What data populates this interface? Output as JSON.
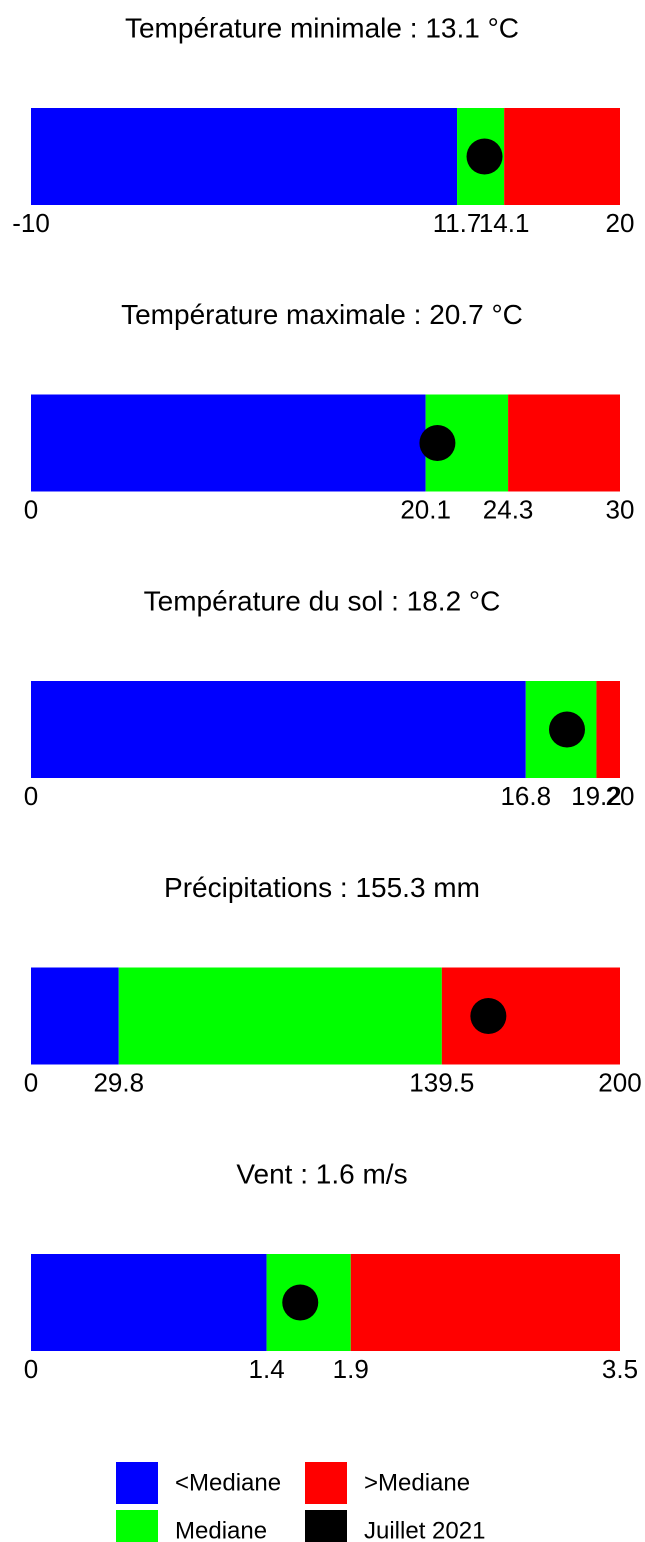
{
  "chart_data": [
    {
      "type": "bar",
      "title": "Température minimale : 13.1 °C",
      "xlim": [
        -10,
        20
      ],
      "xticks": [
        -10,
        11.7,
        14.1,
        20
      ],
      "lower": 11.7,
      "upper": 14.1,
      "value": 13.1
    },
    {
      "type": "bar",
      "title": "Température maximale : 20.7 °C",
      "xlim": [
        0,
        30
      ],
      "xticks": [
        0,
        20.1,
        24.3,
        30
      ],
      "lower": 20.1,
      "upper": 24.3,
      "value": 20.7
    },
    {
      "type": "bar",
      "title": "Température du sol : 18.2 °C",
      "xlim": [
        0,
        20
      ],
      "xticks": [
        0,
        16.8,
        19.2,
        20
      ],
      "lower": 16.8,
      "upper": 19.2,
      "value": 18.2
    },
    {
      "type": "bar",
      "title": "Précipitations : 155.3 mm",
      "xlim": [
        0,
        200
      ],
      "xticks": [
        0,
        29.8,
        139.5,
        200
      ],
      "lower": 29.8,
      "upper": 139.5,
      "value": 155.3
    },
    {
      "type": "bar",
      "title": "Vent : 1.6 m/s",
      "xlim": [
        0,
        3.5
      ],
      "xticks": [
        0,
        1.4,
        1.9,
        3.5
      ],
      "lower": 1.4,
      "upper": 1.9,
      "value": 1.6
    }
  ],
  "legend": {
    "items": [
      {
        "name": "<Mediane",
        "color": "#0000ff"
      },
      {
        "name": "Mediane",
        "color": "#00ff00"
      },
      {
        "name": ">Mediane",
        "color": "#ff0000"
      },
      {
        "name": "Juillet 2021",
        "color": "#000000"
      }
    ]
  }
}
